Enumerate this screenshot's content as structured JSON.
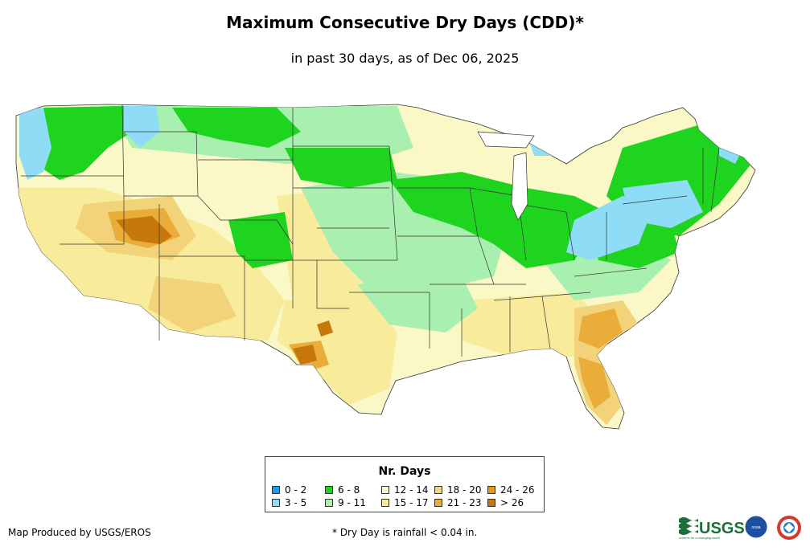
{
  "title": "Maximum Consecutive Dry Days (CDD)*",
  "subtitle": "in past 30 days, as of Dec 06, 2025",
  "legend": {
    "title": "Nr. Days",
    "items": [
      {
        "label": "0 - 2",
        "color": "#1a9cf0"
      },
      {
        "label": "3 - 5",
        "color": "#8fdcf6"
      },
      {
        "label": "6 - 8",
        "color": "#1fd41f"
      },
      {
        "label": "9 - 11",
        "color": "#a8efb0"
      },
      {
        "label": "12 - 14",
        "color": "#fbf8c7"
      },
      {
        "label": "15 - 17",
        "color": "#f8ec9c"
      },
      {
        "label": "18 - 20",
        "color": "#f2d37a"
      },
      {
        "label": "21 - 23",
        "color": "#eaad3a"
      },
      {
        "label": "24 - 26",
        "color": "#e49a18"
      },
      {
        "label": "> 26",
        "color": "#c7780b"
      }
    ]
  },
  "footer": {
    "credit": "Map Produced by USGS/EROS",
    "note": "* Dry Day is rainfall < 0.04 in."
  },
  "logos": {
    "usgs": "USGS",
    "usgs_tagline": "science for a changing world",
    "noaa": "noaa"
  }
}
